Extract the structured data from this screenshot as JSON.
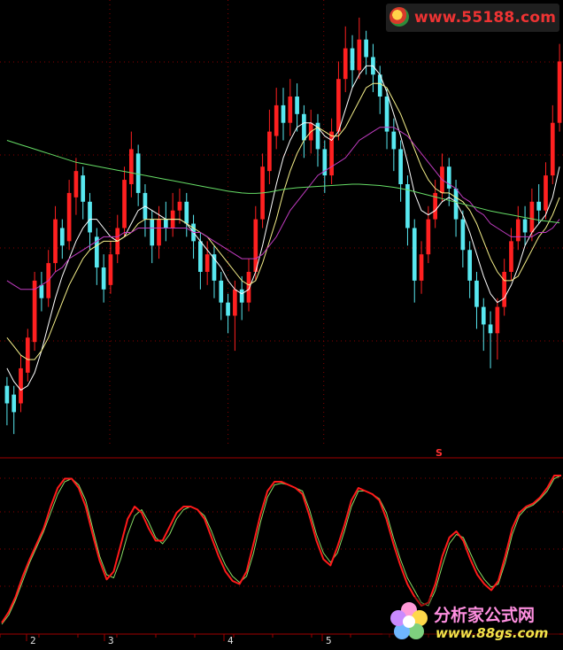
{
  "watermark_top": "www.55188.com",
  "watermark_bottom": {
    "line1": "分析家公式网",
    "line2": "www.88gs.com"
  },
  "signal_marker": "S",
  "colors": {
    "up": "#ff2020",
    "down": "#58e8f0",
    "ma_short": "#ffffff",
    "ma_mid": "#f6f08a",
    "ma_long": "#c03cc0",
    "ma_longest": "#66dd66",
    "ind_red": "#ff1a1a",
    "ind_green": "#88dd66",
    "divider": "#a00000",
    "grid": "#8a0000",
    "bg": "#000000"
  },
  "chart_data": [
    {
      "type": "candlestick",
      "title": "",
      "xlabel": "",
      "ylabel": "",
      "ylim": [
        0,
        100
      ],
      "grid": true,
      "note": "price panel; no price axis shown, values on a relative 0-100 scale",
      "candles": [
        {
          "o": 14,
          "c": 10,
          "h": 16,
          "l": 5
        },
        {
          "o": 12,
          "c": 8,
          "h": 14,
          "l": 3
        },
        {
          "o": 10,
          "c": 18,
          "h": 21,
          "l": 8
        },
        {
          "o": 17,
          "c": 25,
          "h": 27,
          "l": 15
        },
        {
          "o": 24,
          "c": 38,
          "h": 40,
          "l": 22
        },
        {
          "o": 37,
          "c": 34,
          "h": 40,
          "l": 31
        },
        {
          "o": 34,
          "c": 42,
          "h": 45,
          "l": 32
        },
        {
          "o": 42,
          "c": 52,
          "h": 55,
          "l": 40
        },
        {
          "o": 50,
          "c": 46,
          "h": 52,
          "l": 43
        },
        {
          "o": 47,
          "c": 58,
          "h": 61,
          "l": 45
        },
        {
          "o": 57,
          "c": 63,
          "h": 66,
          "l": 53
        },
        {
          "o": 62,
          "c": 56,
          "h": 64,
          "l": 52
        },
        {
          "o": 56,
          "c": 49,
          "h": 58,
          "l": 45
        },
        {
          "o": 48,
          "c": 41,
          "h": 50,
          "l": 37
        },
        {
          "o": 41,
          "c": 36,
          "h": 44,
          "l": 33
        },
        {
          "o": 37,
          "c": 44,
          "h": 47,
          "l": 35
        },
        {
          "o": 44,
          "c": 50,
          "h": 53,
          "l": 42
        },
        {
          "o": 50,
          "c": 61,
          "h": 64,
          "l": 48
        },
        {
          "o": 60,
          "c": 68,
          "h": 72,
          "l": 57
        },
        {
          "o": 67,
          "c": 58,
          "h": 69,
          "l": 55
        },
        {
          "o": 58,
          "c": 52,
          "h": 60,
          "l": 48
        },
        {
          "o": 52,
          "c": 46,
          "h": 54,
          "l": 42
        },
        {
          "o": 46,
          "c": 52,
          "h": 55,
          "l": 43
        },
        {
          "o": 52,
          "c": 50,
          "h": 56,
          "l": 47
        },
        {
          "o": 50,
          "c": 54,
          "h": 58,
          "l": 48
        },
        {
          "o": 54,
          "c": 56,
          "h": 59,
          "l": 51
        },
        {
          "o": 56,
          "c": 51,
          "h": 58,
          "l": 48
        },
        {
          "o": 51,
          "c": 47,
          "h": 53,
          "l": 43
        },
        {
          "o": 47,
          "c": 40,
          "h": 49,
          "l": 36
        },
        {
          "o": 40,
          "c": 44,
          "h": 47,
          "l": 37
        },
        {
          "o": 44,
          "c": 38,
          "h": 46,
          "l": 34
        },
        {
          "o": 38,
          "c": 33,
          "h": 40,
          "l": 29
        },
        {
          "o": 33,
          "c": 30,
          "h": 35,
          "l": 26
        },
        {
          "o": 30,
          "c": 36,
          "h": 38,
          "l": 22
        },
        {
          "o": 36,
          "c": 33,
          "h": 39,
          "l": 29
        },
        {
          "o": 33,
          "c": 40,
          "h": 43,
          "l": 31
        },
        {
          "o": 40,
          "c": 52,
          "h": 55,
          "l": 38
        },
        {
          "o": 52,
          "c": 64,
          "h": 67,
          "l": 50
        },
        {
          "o": 63,
          "c": 72,
          "h": 77,
          "l": 60
        },
        {
          "o": 71,
          "c": 78,
          "h": 82,
          "l": 68
        },
        {
          "o": 78,
          "c": 74,
          "h": 82,
          "l": 70
        },
        {
          "o": 74,
          "c": 80,
          "h": 84,
          "l": 71
        },
        {
          "o": 80,
          "c": 76,
          "h": 83,
          "l": 72
        },
        {
          "o": 76,
          "c": 70,
          "h": 78,
          "l": 66
        },
        {
          "o": 70,
          "c": 74,
          "h": 77,
          "l": 67
        },
        {
          "o": 74,
          "c": 68,
          "h": 76,
          "l": 64
        },
        {
          "o": 68,
          "c": 62,
          "h": 70,
          "l": 58
        },
        {
          "o": 62,
          "c": 72,
          "h": 75,
          "l": 60
        },
        {
          "o": 72,
          "c": 84,
          "h": 88,
          "l": 70
        },
        {
          "o": 84,
          "c": 91,
          "h": 96,
          "l": 81
        },
        {
          "o": 91,
          "c": 86,
          "h": 94,
          "l": 82
        },
        {
          "o": 86,
          "c": 93,
          "h": 98,
          "l": 84
        },
        {
          "o": 93,
          "c": 89,
          "h": 95,
          "l": 85
        },
        {
          "o": 89,
          "c": 85,
          "h": 92,
          "l": 81
        },
        {
          "o": 85,
          "c": 80,
          "h": 87,
          "l": 76
        },
        {
          "o": 80,
          "c": 72,
          "h": 82,
          "l": 68
        },
        {
          "o": 72,
          "c": 68,
          "h": 75,
          "l": 63
        },
        {
          "o": 68,
          "c": 60,
          "h": 70,
          "l": 56
        },
        {
          "o": 60,
          "c": 50,
          "h": 62,
          "l": 46
        },
        {
          "o": 50,
          "c": 38,
          "h": 52,
          "l": 33
        },
        {
          "o": 38,
          "c": 44,
          "h": 47,
          "l": 35
        },
        {
          "o": 44,
          "c": 52,
          "h": 55,
          "l": 42
        },
        {
          "o": 52,
          "c": 58,
          "h": 61,
          "l": 50
        },
        {
          "o": 58,
          "c": 64,
          "h": 67,
          "l": 56
        },
        {
          "o": 64,
          "c": 59,
          "h": 66,
          "l": 55
        },
        {
          "o": 59,
          "c": 52,
          "h": 61,
          "l": 48
        },
        {
          "o": 52,
          "c": 45,
          "h": 54,
          "l": 41
        },
        {
          "o": 45,
          "c": 38,
          "h": 47,
          "l": 34
        },
        {
          "o": 38,
          "c": 32,
          "h": 40,
          "l": 27
        },
        {
          "o": 32,
          "c": 28,
          "h": 34,
          "l": 22
        },
        {
          "o": 28,
          "c": 26,
          "h": 31,
          "l": 18
        },
        {
          "o": 26,
          "c": 32,
          "h": 34,
          "l": 20
        },
        {
          "o": 32,
          "c": 40,
          "h": 43,
          "l": 30
        },
        {
          "o": 40,
          "c": 47,
          "h": 50,
          "l": 38
        },
        {
          "o": 47,
          "c": 52,
          "h": 55,
          "l": 45
        },
        {
          "o": 52,
          "c": 49,
          "h": 55,
          "l": 46
        },
        {
          "o": 49,
          "c": 56,
          "h": 59,
          "l": 47
        },
        {
          "o": 56,
          "c": 54,
          "h": 60,
          "l": 51
        },
        {
          "o": 54,
          "c": 62,
          "h": 65,
          "l": 52
        },
        {
          "o": 62,
          "c": 74,
          "h": 78,
          "l": 60
        },
        {
          "o": 74,
          "c": 88,
          "h": 92,
          "l": 72
        }
      ],
      "ma": [
        {
          "values": [
            18,
            15,
            13,
            14,
            17,
            22,
            28,
            34,
            39,
            43,
            47,
            50,
            52,
            52,
            50,
            48,
            47,
            48,
            51,
            54,
            55,
            54,
            53,
            52,
            52,
            52,
            51,
            49,
            47,
            45,
            43,
            41,
            38,
            36,
            35,
            36,
            40,
            46,
            53,
            60,
            66,
            70,
            73,
            74,
            74,
            73,
            71,
            70,
            72,
            77,
            82,
            85,
            87,
            87,
            85,
            81,
            76,
            71,
            65,
            58,
            54,
            53,
            54,
            56,
            57,
            56,
            53,
            49,
            44,
            39,
            35,
            33,
            34,
            37,
            41,
            46,
            49,
            51,
            53,
            57,
            64
          ]
        },
        {
          "values": [
            25,
            23,
            21,
            20,
            20,
            22,
            25,
            29,
            33,
            37,
            40,
            43,
            45,
            46,
            47,
            47,
            47,
            48,
            49,
            51,
            52,
            52,
            52,
            52,
            52,
            52,
            51,
            50,
            49,
            48,
            46,
            44,
            42,
            40,
            38,
            37,
            38,
            42,
            47,
            52,
            58,
            63,
            67,
            70,
            72,
            73,
            72,
            71,
            71,
            73,
            76,
            79,
            82,
            83,
            83,
            82,
            79,
            76,
            72,
            68,
            64,
            61,
            59,
            58,
            58,
            57,
            56,
            54,
            51,
            47,
            43,
            40,
            38,
            38,
            39,
            42,
            45,
            48,
            50,
            53,
            57
          ]
        },
        {
          "values": [
            38,
            37,
            36,
            36,
            36,
            37,
            38,
            40,
            41,
            43,
            44,
            45,
            46,
            47,
            48,
            48,
            48,
            49,
            49,
            50,
            50,
            50,
            50,
            50,
            50,
            50,
            50,
            49,
            49,
            48,
            47,
            46,
            45,
            44,
            43,
            43,
            43,
            44,
            46,
            48,
            51,
            54,
            56,
            58,
            60,
            62,
            63,
            64,
            65,
            66,
            68,
            70,
            71,
            72,
            73,
            73,
            73,
            72,
            71,
            69,
            67,
            65,
            63,
            61,
            60,
            59,
            57,
            56,
            54,
            53,
            51,
            50,
            49,
            48,
            48,
            48,
            48,
            49,
            49,
            50,
            52
          ]
        },
        {
          "values": [
            70,
            69.5,
            69,
            68.5,
            68,
            67.5,
            67,
            66.5,
            66,
            65.5,
            65,
            64.7,
            64.4,
            64.1,
            63.8,
            63.5,
            63.2,
            62.9,
            62.6,
            62.3,
            62,
            61.7,
            61.4,
            61.1,
            60.8,
            60.5,
            60.2,
            59.9,
            59.6,
            59.3,
            59,
            58.7,
            58.4,
            58.2,
            58,
            57.9,
            57.9,
            58,
            58.2,
            58.5,
            58.8,
            59,
            59.2,
            59.3,
            59.4,
            59.5,
            59.6,
            59.7,
            59.8,
            59.9,
            60,
            60,
            59.9,
            59.8,
            59.7,
            59.5,
            59.3,
            59,
            58.7,
            58.3,
            57.9,
            57.5,
            57.1,
            56.7,
            56.3,
            55.9,
            55.5,
            55.1,
            54.7,
            54.3,
            53.9,
            53.6,
            53.3,
            53,
            52.7,
            52.4,
            52.1,
            51.8,
            51.6,
            51.4,
            51.2
          ]
        }
      ]
    },
    {
      "type": "line",
      "title": "",
      "xlabel": "",
      "ylabel": "",
      "ylim": [
        0,
        100
      ],
      "grid": true,
      "x_tick_labels": [
        "2",
        "3",
        "4",
        "5"
      ],
      "series": [
        {
          "values": [
            5,
            12,
            22,
            35,
            46,
            56,
            66,
            80,
            92,
            98,
            98,
            92,
            80,
            62,
            45,
            33,
            38,
            55,
            72,
            80,
            76,
            66,
            58,
            58,
            67,
            76,
            80,
            80,
            78,
            72,
            60,
            48,
            38,
            32,
            30,
            38,
            56,
            75,
            90,
            96,
            96,
            94,
            92,
            88,
            74,
            58,
            46,
            42,
            54,
            68,
            84,
            92,
            90,
            88,
            84,
            72,
            56,
            42,
            30,
            22,
            16,
            18,
            30,
            48,
            60,
            64,
            58,
            46,
            36,
            30,
            26,
            32,
            48,
            66,
            76,
            80,
            82,
            86,
            92,
            100,
            100
          ]
        },
        {
          "values": [
            4,
            10,
            20,
            32,
            44,
            54,
            64,
            76,
            88,
            96,
            98,
            94,
            84,
            66,
            48,
            36,
            34,
            46,
            62,
            74,
            78,
            70,
            60,
            56,
            62,
            72,
            78,
            80,
            78,
            74,
            64,
            52,
            42,
            35,
            31,
            35,
            50,
            70,
            86,
            94,
            95,
            94,
            92,
            90,
            78,
            62,
            50,
            44,
            50,
            64,
            80,
            90,
            90,
            88,
            85,
            76,
            60,
            46,
            34,
            26,
            18,
            16,
            26,
            42,
            56,
            62,
            60,
            50,
            40,
            33,
            28,
            30,
            44,
            62,
            74,
            79,
            81,
            85,
            90,
            98,
            100
          ]
        }
      ]
    }
  ]
}
